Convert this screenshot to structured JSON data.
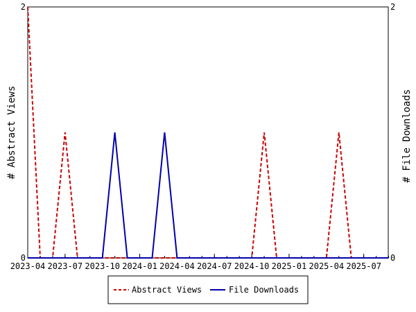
{
  "chart_data": {
    "type": "line",
    "title": "",
    "xlabel": "",
    "ylabel_left": "# Abstract Views",
    "ylabel_right": "# File Downloads",
    "ylim": [
      0,
      2
    ],
    "y_ticks": [
      "0",
      "2"
    ],
    "x_ticks": [
      "2023-04",
      "2023-07",
      "2023-10",
      "2024-01",
      "2024-04",
      "2024-07",
      "2024-10",
      "2025-01",
      "2025-04",
      "2025-07"
    ],
    "x": [
      "2023-04",
      "2023-05",
      "2023-06",
      "2023-07",
      "2023-08",
      "2023-09",
      "2023-10",
      "2023-11",
      "2023-12",
      "2024-01",
      "2024-02",
      "2024-03",
      "2024-04",
      "2024-05",
      "2024-06",
      "2024-07",
      "2024-08",
      "2024-09",
      "2024-10",
      "2024-11",
      "2024-12",
      "2025-01",
      "2025-02",
      "2025-03",
      "2025-04",
      "2025-05",
      "2025-06",
      "2025-07",
      "2025-08",
      "2025-09"
    ],
    "series": [
      {
        "name": "Abstract Views",
        "color": "#cc0000",
        "style": "dashed",
        "values": [
          2,
          0,
          0,
          1,
          0,
          0,
          0,
          0,
          0,
          0,
          0,
          0,
          0,
          0,
          0,
          0,
          0,
          0,
          0,
          1,
          0,
          0,
          0,
          0,
          0,
          1,
          0,
          0,
          0,
          0
        ]
      },
      {
        "name": "File Downloads",
        "color": "#0000aa",
        "style": "solid",
        "values": [
          0,
          0,
          0,
          0,
          0,
          0,
          0,
          1,
          0,
          0,
          0,
          1,
          0,
          0,
          0,
          0,
          0,
          0,
          0,
          0,
          0,
          0,
          0,
          0,
          0,
          0,
          0,
          0,
          0,
          0
        ]
      }
    ],
    "legend_position": "bottom-center",
    "grid": false
  }
}
